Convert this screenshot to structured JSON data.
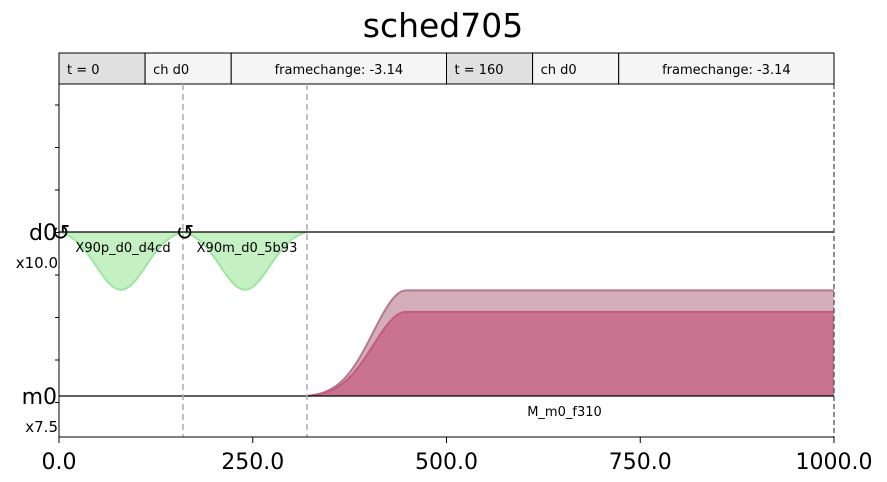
{
  "chart_data": {
    "type": "area",
    "title": "sched705",
    "xlim": [
      0,
      1000
    ],
    "x_ticks": [
      "0.0",
      "250.0",
      "500.0",
      "750.0",
      "1000.0"
    ],
    "x_tick_values": [
      0,
      250,
      500,
      750,
      1000
    ],
    "header": [
      {
        "cells": [
          "t = 0",
          "ch d0",
          "framechange: -3.14"
        ]
      },
      {
        "cells": [
          "t = 160",
          "ch d0",
          "framechange: -3.14"
        ]
      }
    ],
    "header_times": [
      0,
      160
    ],
    "barriers": [
      160,
      320
    ],
    "channels": [
      {
        "name": "d0",
        "scale": "x10.0",
        "frame_changes": [
          0,
          160
        ]
      },
      {
        "name": "m0",
        "scale": "x7.5",
        "frame_changes": []
      }
    ],
    "pulses": [
      {
        "label": "X90p_d0_d4cd",
        "channel": "d0",
        "t0": 0,
        "duration": 160,
        "shape": "gaussian",
        "amplitude": -0.35,
        "color": "#9de69d"
      },
      {
        "label": "X90m_d0_5b93",
        "channel": "d0",
        "t0": 160,
        "duration": 160,
        "shape": "gaussian",
        "amplitude": -0.35,
        "color": "#9de69d"
      },
      {
        "label": "M_m0_f310",
        "channel": "m0",
        "t0": 320,
        "duration": 680,
        "shape": "gaussian_square",
        "amplitude_real": 0.51,
        "amplitude_imag": 0.64,
        "rise": 128,
        "color_real": "#c45a80",
        "color_imag": "#b5778a"
      }
    ],
    "icon": "framechange-icon"
  }
}
